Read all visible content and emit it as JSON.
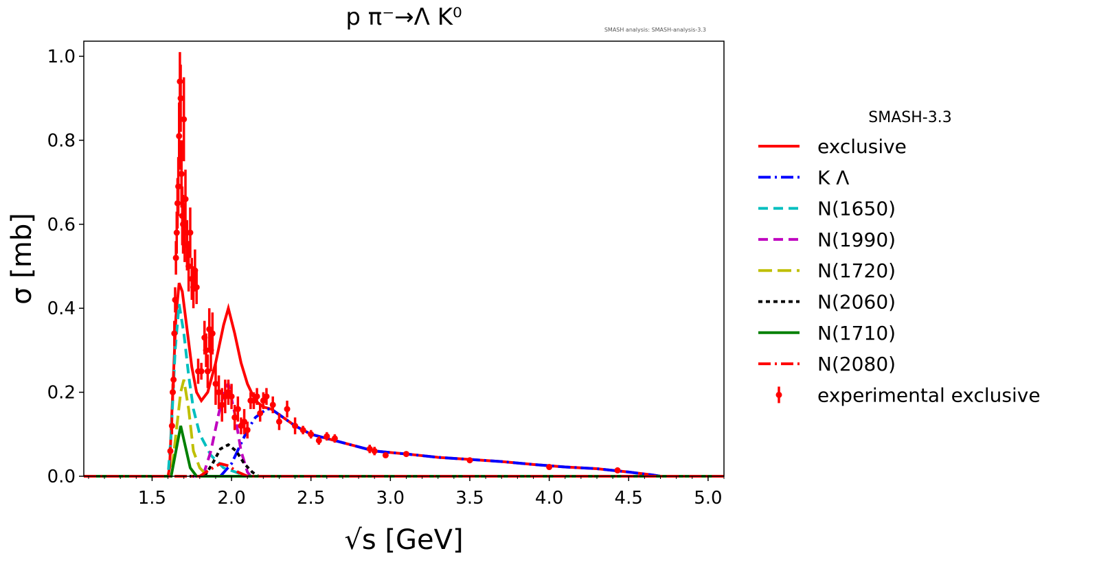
{
  "chart_data": {
    "type": "line",
    "title": "p π⁻→Λ K⁰",
    "annotation": "SMASH analysis: SMASH-analysis-3.3",
    "xlabel": "√s [GeV]",
    "ylabel": "σ [mb]",
    "xlim": [
      1.07,
      5.1
    ],
    "ylim": [
      0,
      1.036
    ],
    "xticks": [
      "1.5",
      "2.0",
      "2.5",
      "3.0",
      "3.5",
      "4.0",
      "4.5",
      "5.0"
    ],
    "yticks": [
      "0.0",
      "0.2",
      "0.4",
      "0.6",
      "0.8",
      "1.0"
    ],
    "legend_title": "SMASH-3.3",
    "legend_position": "outside-right",
    "series": [
      {
        "name": "exclusive",
        "color": "#ff0000",
        "dash": "",
        "points": [
          [
            1.07,
            0
          ],
          [
            1.6,
            0
          ],
          [
            1.61,
            0.02
          ],
          [
            1.63,
            0.2
          ],
          [
            1.65,
            0.38
          ],
          [
            1.67,
            0.46
          ],
          [
            1.69,
            0.44
          ],
          [
            1.72,
            0.35
          ],
          [
            1.75,
            0.26
          ],
          [
            1.78,
            0.2
          ],
          [
            1.81,
            0.18
          ],
          [
            1.85,
            0.2
          ],
          [
            1.9,
            0.27
          ],
          [
            1.95,
            0.36
          ],
          [
            1.98,
            0.4
          ],
          [
            2.02,
            0.34
          ],
          [
            2.06,
            0.27
          ],
          [
            2.1,
            0.22
          ],
          [
            2.15,
            0.18
          ],
          [
            2.2,
            0.165
          ],
          [
            2.25,
            0.16
          ],
          [
            2.4,
            0.12
          ],
          [
            2.5,
            0.1
          ],
          [
            2.7,
            0.08
          ],
          [
            2.9,
            0.06
          ],
          [
            3.1,
            0.053
          ],
          [
            3.3,
            0.045
          ],
          [
            3.5,
            0.04
          ],
          [
            3.7,
            0.035
          ],
          [
            3.9,
            0.028
          ],
          [
            4.1,
            0.022
          ],
          [
            4.3,
            0.018
          ],
          [
            4.5,
            0.01
          ],
          [
            4.65,
            0.003
          ],
          [
            4.7,
            0
          ],
          [
            5.1,
            0
          ]
        ]
      },
      {
        "name": "K Λ",
        "color": "#0000ff",
        "dash": "18 6 3 6",
        "points": [
          [
            1.07,
            0
          ],
          [
            1.93,
            0
          ],
          [
            2.0,
            0.03
          ],
          [
            2.05,
            0.07
          ],
          [
            2.1,
            0.11
          ],
          [
            2.15,
            0.14
          ],
          [
            2.22,
            0.16
          ],
          [
            2.25,
            0.16
          ],
          [
            2.4,
            0.12
          ],
          [
            2.5,
            0.1
          ],
          [
            2.7,
            0.08
          ],
          [
            2.9,
            0.06
          ],
          [
            3.1,
            0.053
          ],
          [
            3.3,
            0.045
          ],
          [
            3.5,
            0.04
          ],
          [
            3.7,
            0.035
          ],
          [
            3.9,
            0.028
          ],
          [
            4.1,
            0.022
          ],
          [
            4.3,
            0.018
          ],
          [
            4.5,
            0.01
          ],
          [
            4.65,
            0.003
          ],
          [
            4.7,
            0
          ],
          [
            5.1,
            0
          ]
        ]
      },
      {
        "name": "N(1650)",
        "color": "#00bfbf",
        "dash": "14 8",
        "points": [
          [
            1.07,
            0
          ],
          [
            1.6,
            0
          ],
          [
            1.62,
            0.1
          ],
          [
            1.645,
            0.3
          ],
          [
            1.67,
            0.41
          ],
          [
            1.7,
            0.34
          ],
          [
            1.73,
            0.24
          ],
          [
            1.76,
            0.16
          ],
          [
            1.8,
            0.1
          ],
          [
            1.87,
            0.05
          ],
          [
            1.95,
            0.02
          ],
          [
            2.1,
            0
          ],
          [
            5.1,
            0
          ]
        ]
      },
      {
        "name": "N(1990)",
        "color": "#bf00bf",
        "dash": "14 8",
        "points": [
          [
            1.07,
            0
          ],
          [
            1.82,
            0
          ],
          [
            1.87,
            0.06
          ],
          [
            1.92,
            0.15
          ],
          [
            1.96,
            0.21
          ],
          [
            1.98,
            0.22
          ],
          [
            2.02,
            0.15
          ],
          [
            2.06,
            0.06
          ],
          [
            2.1,
            0.01
          ],
          [
            2.12,
            0
          ],
          [
            5.1,
            0
          ]
        ]
      },
      {
        "name": "N(1720)",
        "color": "#bfbf00",
        "dash": "20 8",
        "points": [
          [
            1.07,
            0
          ],
          [
            1.62,
            0
          ],
          [
            1.65,
            0.1
          ],
          [
            1.68,
            0.2
          ],
          [
            1.7,
            0.23
          ],
          [
            1.73,
            0.16
          ],
          [
            1.76,
            0.06
          ],
          [
            1.8,
            0.02
          ],
          [
            1.85,
            0
          ],
          [
            5.1,
            0
          ]
        ]
      },
      {
        "name": "N(2060)",
        "color": "#000000",
        "dash": "6 5",
        "points": [
          [
            1.07,
            0
          ],
          [
            1.83,
            0
          ],
          [
            1.88,
            0.03
          ],
          [
            1.93,
            0.065
          ],
          [
            1.98,
            0.075
          ],
          [
            2.03,
            0.06
          ],
          [
            2.08,
            0.03
          ],
          [
            2.13,
            0.01
          ],
          [
            2.17,
            0
          ],
          [
            5.1,
            0
          ]
        ]
      },
      {
        "name": "N(1710)",
        "color": "#008000",
        "dash": "",
        "points": [
          [
            1.07,
            0
          ],
          [
            1.62,
            0
          ],
          [
            1.65,
            0.06
          ],
          [
            1.68,
            0.12
          ],
          [
            1.71,
            0.07
          ],
          [
            1.74,
            0.02
          ],
          [
            1.78,
            0
          ],
          [
            5.1,
            0
          ]
        ]
      },
      {
        "name": "N(2080)",
        "color": "#ff0000",
        "dash": "18 6 3 6",
        "points": [
          [
            1.07,
            0
          ],
          [
            1.8,
            0
          ],
          [
            1.86,
            0.015
          ],
          [
            1.93,
            0.03
          ],
          [
            1.98,
            0.025
          ],
          [
            2.04,
            0.01
          ],
          [
            2.1,
            0
          ],
          [
            5.1,
            0
          ]
        ]
      }
    ],
    "experimental": {
      "name": "experimental exclusive",
      "color": "#ff0000",
      "points": [
        [
          1.615,
          0.06,
          0.01
        ],
        [
          1.625,
          0.12,
          0.02
        ],
        [
          1.63,
          0.2,
          0.02
        ],
        [
          1.635,
          0.23,
          0.02
        ],
        [
          1.64,
          0.34,
          0.03
        ],
        [
          1.645,
          0.42,
          0.03
        ],
        [
          1.65,
          0.52,
          0.04
        ],
        [
          1.655,
          0.58,
          0.05
        ],
        [
          1.66,
          0.65,
          0.06
        ],
        [
          1.665,
          0.69,
          0.07
        ],
        [
          1.67,
          0.81,
          0.08
        ],
        [
          1.675,
          0.94,
          0.07
        ],
        [
          1.68,
          0.9,
          0.08
        ],
        [
          1.685,
          0.72,
          0.08
        ],
        [
          1.69,
          0.62,
          0.07
        ],
        [
          1.695,
          0.6,
          0.07
        ],
        [
          1.7,
          0.85,
          0.1
        ],
        [
          1.705,
          0.58,
          0.07
        ],
        [
          1.71,
          0.66,
          0.07
        ],
        [
          1.72,
          0.55,
          0.06
        ],
        [
          1.73,
          0.5,
          0.06
        ],
        [
          1.74,
          0.58,
          0.06
        ],
        [
          1.75,
          0.47,
          0.05
        ],
        [
          1.76,
          0.45,
          0.05
        ],
        [
          1.77,
          0.49,
          0.05
        ],
        [
          1.78,
          0.45,
          0.04
        ],
        [
          1.79,
          0.25,
          0.03
        ],
        [
          1.81,
          0.25,
          0.02
        ],
        [
          1.83,
          0.33,
          0.04
        ],
        [
          1.84,
          0.3,
          0.04
        ],
        [
          1.85,
          0.25,
          0.04
        ],
        [
          1.86,
          0.35,
          0.05
        ],
        [
          1.87,
          0.3,
          0.05
        ],
        [
          1.88,
          0.34,
          0.05
        ],
        [
          1.9,
          0.22,
          0.05
        ],
        [
          1.92,
          0.2,
          0.04
        ],
        [
          1.94,
          0.17,
          0.04
        ],
        [
          1.96,
          0.19,
          0.04
        ],
        [
          1.98,
          0.2,
          0.03
        ],
        [
          2.0,
          0.19,
          0.03
        ],
        [
          2.02,
          0.14,
          0.03
        ],
        [
          2.04,
          0.16,
          0.03
        ],
        [
          2.06,
          0.12,
          0.02
        ],
        [
          2.08,
          0.13,
          0.03
        ],
        [
          2.1,
          0.11,
          0.02
        ],
        [
          2.12,
          0.18,
          0.02
        ],
        [
          2.14,
          0.18,
          0.02
        ],
        [
          2.16,
          0.19,
          0.02
        ],
        [
          2.18,
          0.15,
          0.02
        ],
        [
          2.2,
          0.18,
          0.02
        ],
        [
          2.22,
          0.19,
          0.02
        ],
        [
          2.26,
          0.17,
          0.02
        ],
        [
          2.3,
          0.13,
          0.02
        ],
        [
          2.35,
          0.16,
          0.02
        ],
        [
          2.4,
          0.12,
          0.02
        ],
        [
          2.45,
          0.11,
          0.01
        ],
        [
          2.5,
          0.1,
          0.01
        ],
        [
          2.55,
          0.085,
          0.01
        ],
        [
          2.6,
          0.095,
          0.01
        ],
        [
          2.65,
          0.09,
          0.01
        ],
        [
          2.87,
          0.065,
          0.01
        ],
        [
          2.9,
          0.06,
          0.01
        ],
        [
          2.97,
          0.05,
          0.005
        ],
        [
          3.1,
          0.053,
          0.005
        ],
        [
          3.5,
          0.038,
          0.005
        ],
        [
          4.0,
          0.022,
          0.004
        ],
        [
          4.43,
          0.014,
          0.003
        ]
      ]
    }
  }
}
